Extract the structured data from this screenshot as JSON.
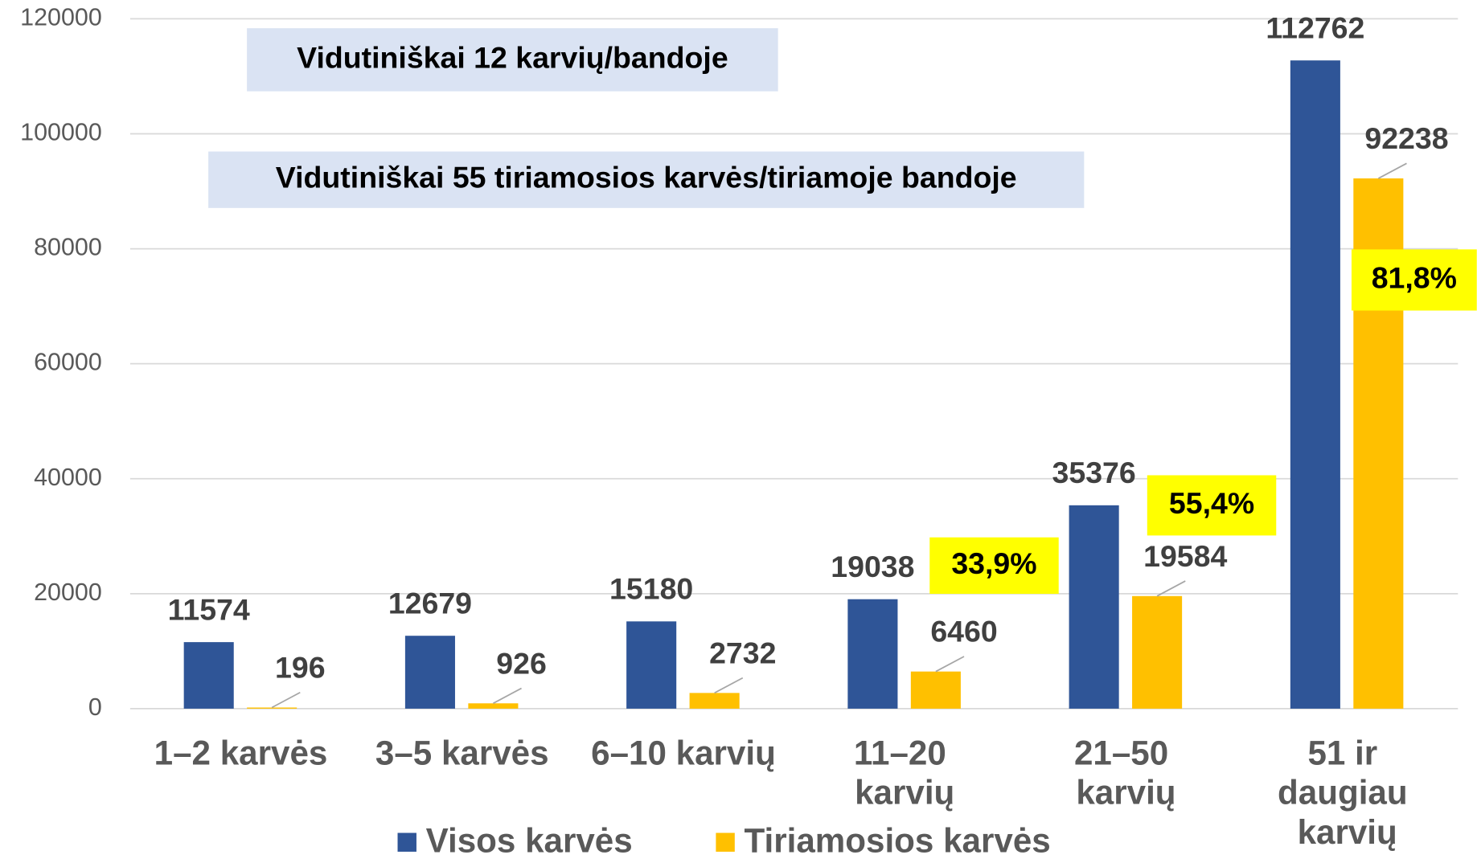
{
  "chart_data": {
    "type": "bar",
    "categories": [
      "1–2 karvės",
      "3–5 karvės",
      "6–10 karvių",
      "11–20 karvių",
      "21–50 karvių",
      "51 ir daugiau karvių"
    ],
    "series": [
      {
        "name": "Visos karvės",
        "color": "#2f5597",
        "values": [
          11574,
          12679,
          15180,
          19038,
          35376,
          112762
        ]
      },
      {
        "name": "Tiriamosios karvės",
        "color": "#ffc000",
        "values": [
          196,
          926,
          2732,
          6460,
          19584,
          92238
        ]
      }
    ],
    "ylim": [
      0,
      120000
    ],
    "yticks": [
      0,
      20000,
      40000,
      60000,
      80000,
      100000,
      120000
    ],
    "grid": true,
    "annotations": [
      "Vidutiniškai 12 karvių/bandoje",
      "Vidutiniškai 55 tiriamosios karvės/tiriamoje bandoje"
    ],
    "percent_labels": [
      "33,9%",
      "55,4%",
      "81,8%"
    ],
    "legend": "bottom"
  }
}
